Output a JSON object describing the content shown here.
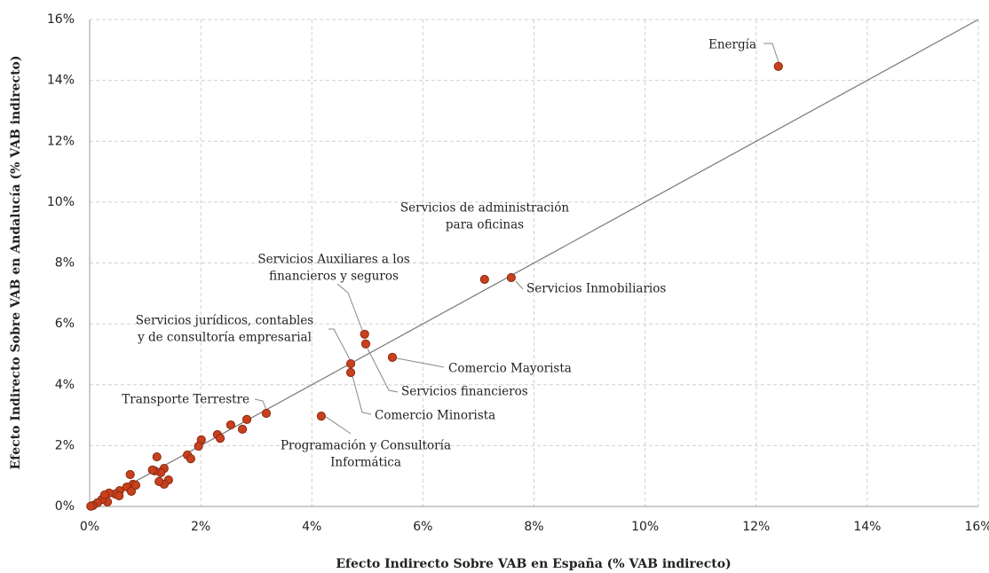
{
  "chart_data": {
    "type": "scatter",
    "xlabel": "Efecto Indirecto Sobre VAB en España (% VAB indirecto)",
    "ylabel": "Efecto Indirecto Sobre VAB en Andalucía (% VAB indirecto)",
    "xlim": [
      0,
      16
    ],
    "ylim": [
      0,
      16
    ],
    "xticks": [
      {
        "value": 0,
        "label": "0%"
      },
      {
        "value": 2,
        "label": "2%"
      },
      {
        "value": 4,
        "label": "4%"
      },
      {
        "value": 6,
        "label": "6%"
      },
      {
        "value": 8,
        "label": "8%"
      },
      {
        "value": 10,
        "label": "10%"
      },
      {
        "value": 12,
        "label": "12%"
      },
      {
        "value": 14,
        "label": "14%"
      },
      {
        "value": 16,
        "label": "16%"
      }
    ],
    "yticks": [
      {
        "value": 0,
        "label": "0%"
      },
      {
        "value": 2,
        "label": "2%"
      },
      {
        "value": 4,
        "label": "4%"
      },
      {
        "value": 6,
        "label": "6%"
      },
      {
        "value": 8,
        "label": "8%"
      },
      {
        "value": 10,
        "label": "10%"
      },
      {
        "value": 12,
        "label": "12%"
      },
      {
        "value": 14,
        "label": "14%"
      },
      {
        "value": 16,
        "label": "16%"
      }
    ],
    "grid": true,
    "reference_line": true,
    "color": "#c8401e",
    "x": [
      12.4,
      7.11,
      7.59,
      4.95,
      4.97,
      5.45,
      4.7,
      4.7,
      3.18,
      4.17,
      2.83,
      2.75,
      2.54,
      2.3,
      2.35,
      2.01,
      1.96,
      1.76,
      1.82,
      1.21,
      1.34,
      1.28,
      1.17,
      1.42,
      1.34,
      1.25,
      0.73,
      0.78,
      0.67,
      0.75,
      0.54,
      0.46,
      0.35,
      0.32,
      0.22,
      0.14,
      0.06,
      0.02,
      0.27,
      0.53,
      0.83,
      1.13
    ],
    "y": [
      14.46,
      7.46,
      7.52,
      5.66,
      5.34,
      4.9,
      4.69,
      4.4,
      3.06,
      2.97,
      2.86,
      2.54,
      2.68,
      2.36,
      2.24,
      2.19,
      1.98,
      1.69,
      1.57,
      1.63,
      1.25,
      1.11,
      1.17,
      0.87,
      0.73,
      0.82,
      1.05,
      0.73,
      0.64,
      0.5,
      0.52,
      0.41,
      0.44,
      0.15,
      0.23,
      0.12,
      0.03,
      0.01,
      0.38,
      0.35,
      0.7,
      1.2
    ],
    "annotations": [
      [
        "Energía"
      ],
      [
        "Servicios de administración",
        "para oficinas"
      ],
      [
        "Servicios Inmobiliarios"
      ],
      [
        "Servicios Auxiliares a los",
        "financieros y seguros"
      ],
      [
        "Servicios financieros"
      ],
      [
        "Comercio Mayorista"
      ],
      [
        "Servicios jurídicos, contables",
        "y de consultoría empresarial"
      ],
      [
        "Comercio Minorista"
      ],
      [
        "Transporte Terrestre"
      ],
      [
        "Programación y Consultoría",
        "Informática"
      ]
    ]
  }
}
